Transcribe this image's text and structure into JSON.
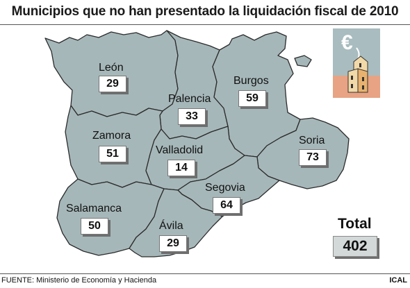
{
  "title": "Municipios que no han presentado la liquidación fiscal de 2010",
  "provinces": [
    {
      "name": "León",
      "value": "29"
    },
    {
      "name": "Palencia",
      "value": "33"
    },
    {
      "name": "Burgos",
      "value": "59"
    },
    {
      "name": "Zamora",
      "value": "51"
    },
    {
      "name": "Valladolid",
      "value": "14"
    },
    {
      "name": "Soria",
      "value": "73"
    },
    {
      "name": "Segovia",
      "value": "64"
    },
    {
      "name": "Salamanca",
      "value": "50"
    },
    {
      "name": "Ávila",
      "value": "29"
    }
  ],
  "total": {
    "label": "Total",
    "value": "402"
  },
  "source": "FUENTE: Ministerio de Economía y Hacienda",
  "credit": "ICAL",
  "colors": {
    "map_fill": "#a6b7b9",
    "map_border": "#2b2b2b",
    "total_box": "#d3d8d9"
  },
  "icon": "euro-castle-icon"
}
